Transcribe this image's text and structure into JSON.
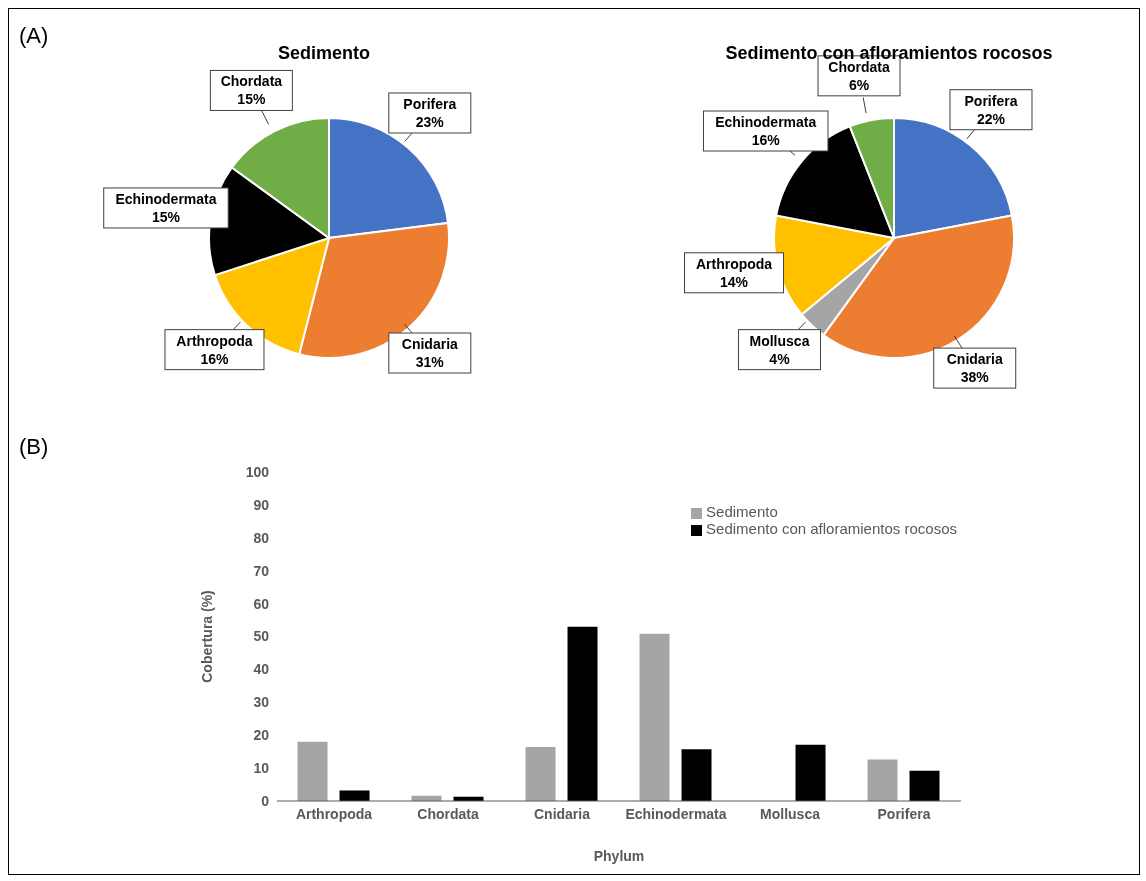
{
  "chart_data": [
    {
      "type": "pie",
      "title": "Sedimento",
      "annotations": [
        "(A)"
      ],
      "categories": [
        "Porifera",
        "Cnidaria",
        "Arthropoda",
        "Echinodermata",
        "Chordata"
      ],
      "values": [
        23,
        31,
        16,
        15,
        15
      ],
      "value_labels": [
        "23%",
        "31%",
        "16%",
        "15%",
        "15%"
      ],
      "colors": [
        "#4472c4",
        "#ed7d31",
        "#ffc000",
        "#000000",
        "#70ad47"
      ]
    },
    {
      "type": "pie",
      "title": "Sedimento con afloramientos rocosos",
      "categories": [
        "Porifera",
        "Cnidaria",
        "Mollusca",
        "Arthropoda",
        "Echinodermata",
        "Chordata"
      ],
      "values": [
        22,
        38,
        4,
        14,
        16,
        6
      ],
      "value_labels": [
        "22%",
        "38%",
        "4%",
        "14%",
        "16%",
        "6%"
      ],
      "colors": [
        "#4472c4",
        "#ed7d31",
        "#a5a5a5",
        "#ffc000",
        "#000000",
        "#70ad47"
      ]
    },
    {
      "type": "bar",
      "annotations": [
        "(B)"
      ],
      "xlabel": "Phylum",
      "ylabel": "Cobertura (%)",
      "categories": [
        "Arthropoda",
        "Chordata",
        "Cnidaria",
        "Echinodermata",
        "Mollusca",
        "Porifera"
      ],
      "series": [
        {
          "name": "Sedimento",
          "color": "#a5a5a5",
          "values": [
            18,
            1.6,
            16.4,
            50.8,
            0,
            12.6
          ]
        },
        {
          "name": "Sedimento con afloramientos rocosos",
          "color": "#000000",
          "values": [
            3.2,
            1.3,
            53,
            15.7,
            17.1,
            9.2
          ]
        }
      ],
      "ylim": [
        0,
        100
      ],
      "yticks": [
        0,
        10,
        20,
        30,
        40,
        50,
        60,
        70,
        80,
        90,
        100
      ],
      "grid": false,
      "legend": "top right"
    }
  ]
}
